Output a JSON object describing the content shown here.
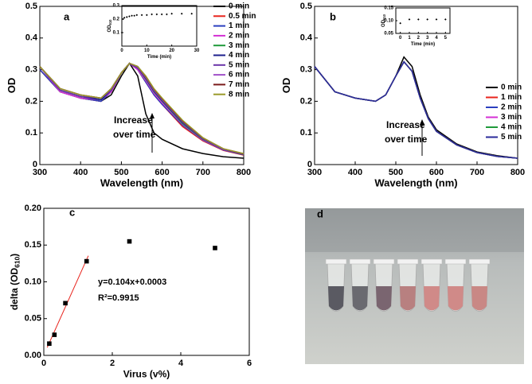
{
  "chart_data": [
    {
      "type": "line",
      "panel_label": "a",
      "x_label": "Wavelength (nm)",
      "y_label": "OD",
      "x": [
        300,
        350,
        400,
        450,
        475,
        500,
        520,
        540,
        560,
        580,
        600,
        650,
        700,
        750,
        800
      ],
      "xlim": [
        300,
        800
      ],
      "xticks": [
        300,
        400,
        500,
        600,
        700,
        800
      ],
      "ylim": [
        0,
        0.5
      ],
      "yticks": [
        0,
        0.1,
        0.2,
        0.3,
        0.4,
        0.5
      ],
      "legend": "upper right",
      "annotations": [
        "Increase",
        "over time"
      ],
      "series": [
        {
          "name": "0 min",
          "color": "#000000",
          "values": [
            0.3,
            0.23,
            0.21,
            0.2,
            0.22,
            0.28,
            0.32,
            0.28,
            0.16,
            0.1,
            0.08,
            0.05,
            0.035,
            0.025,
            0.02
          ]
        },
        {
          "name": "0.5 min",
          "color": "#e8231c",
          "values": [
            0.3,
            0.23,
            0.21,
            0.2,
            0.23,
            0.29,
            0.32,
            0.3,
            0.26,
            0.22,
            0.19,
            0.12,
            0.075,
            0.045,
            0.03
          ]
        },
        {
          "name": "1 min",
          "color": "#2b3fbf",
          "values": [
            0.3,
            0.23,
            0.21,
            0.2,
            0.23,
            0.29,
            0.32,
            0.3,
            0.26,
            0.22,
            0.19,
            0.125,
            0.077,
            0.046,
            0.031
          ]
        },
        {
          "name": "2 min",
          "color": "#d42fd4",
          "values": [
            0.31,
            0.23,
            0.21,
            0.205,
            0.23,
            0.29,
            0.32,
            0.3,
            0.265,
            0.225,
            0.195,
            0.128,
            0.078,
            0.047,
            0.032
          ]
        },
        {
          "name": "3 min",
          "color": "#1f9a3a",
          "values": [
            0.31,
            0.235,
            0.215,
            0.205,
            0.235,
            0.29,
            0.32,
            0.305,
            0.27,
            0.23,
            0.2,
            0.13,
            0.08,
            0.048,
            0.032
          ]
        },
        {
          "name": "4 min",
          "color": "#1c1f8c",
          "values": [
            0.31,
            0.235,
            0.215,
            0.205,
            0.235,
            0.29,
            0.32,
            0.305,
            0.272,
            0.232,
            0.202,
            0.133,
            0.081,
            0.048,
            0.033
          ]
        },
        {
          "name": "5 min",
          "color": "#6a35a8",
          "values": [
            0.31,
            0.235,
            0.215,
            0.21,
            0.235,
            0.29,
            0.32,
            0.305,
            0.274,
            0.234,
            0.204,
            0.135,
            0.082,
            0.049,
            0.033
          ]
        },
        {
          "name": "6 min",
          "color": "#a050c8",
          "values": [
            0.31,
            0.24,
            0.22,
            0.21,
            0.24,
            0.29,
            0.32,
            0.31,
            0.276,
            0.236,
            0.206,
            0.137,
            0.083,
            0.049,
            0.034
          ]
        },
        {
          "name": "7 min",
          "color": "#7a1a1a",
          "values": [
            0.31,
            0.24,
            0.22,
            0.21,
            0.24,
            0.29,
            0.32,
            0.31,
            0.278,
            0.238,
            0.208,
            0.138,
            0.084,
            0.05,
            0.034
          ]
        },
        {
          "name": "8 min",
          "color": "#9a9a2a",
          "values": [
            0.31,
            0.24,
            0.22,
            0.21,
            0.24,
            0.29,
            0.32,
            0.31,
            0.28,
            0.24,
            0.21,
            0.14,
            0.085,
            0.05,
            0.035
          ]
        }
      ]
    },
    {
      "type": "scatter",
      "marker": "diamond",
      "x_label": "Time (min)",
      "y_label": "OD",
      "y_label_sub": "610",
      "x": [
        0,
        0.5,
        1,
        2,
        3,
        4,
        5,
        6,
        8,
        10,
        12,
        14,
        16,
        18,
        20,
        24,
        28
      ],
      "values": [
        0.1,
        0.2,
        0.21,
        0.215,
        0.22,
        0.225,
        0.225,
        0.23,
        0.23,
        0.23,
        0.235,
        0.235,
        0.235,
        0.235,
        0.24,
        0.24,
        0.24
      ],
      "xlim": [
        0,
        30
      ],
      "xticks": [
        0,
        10,
        20,
        30
      ],
      "ylim": [
        0,
        0.3
      ],
      "yticks": [
        0.1,
        0.2,
        0.3
      ]
    },
    {
      "type": "line",
      "panel_label": "b",
      "x_label": "Wavelength (nm)",
      "y_label": "OD",
      "x": [
        300,
        350,
        400,
        450,
        475,
        500,
        520,
        540,
        560,
        580,
        600,
        650,
        700,
        750,
        800
      ],
      "xlim": [
        300,
        800
      ],
      "xticks": [
        300,
        400,
        500,
        600,
        700,
        800
      ],
      "ylim": [
        0,
        0.5
      ],
      "yticks": [
        0,
        0.1,
        0.2,
        0.3,
        0.4,
        0.5
      ],
      "legend": "lower right",
      "annotations": [
        "Increase",
        "over time"
      ],
      "series": [
        {
          "name": "0 min",
          "color": "#000000",
          "values": [
            0.31,
            0.23,
            0.21,
            0.2,
            0.22,
            0.28,
            0.34,
            0.31,
            0.22,
            0.15,
            0.11,
            0.065,
            0.04,
            0.028,
            0.02
          ]
        },
        {
          "name": "1 min",
          "color": "#e8231c",
          "values": [
            0.31,
            0.23,
            0.21,
            0.2,
            0.22,
            0.28,
            0.325,
            0.295,
            0.21,
            0.145,
            0.105,
            0.062,
            0.038,
            0.026,
            0.02
          ]
        },
        {
          "name": "2 min",
          "color": "#2b3fbf",
          "values": [
            0.31,
            0.23,
            0.21,
            0.2,
            0.22,
            0.28,
            0.325,
            0.295,
            0.21,
            0.145,
            0.105,
            0.062,
            0.038,
            0.026,
            0.02
          ]
        },
        {
          "name": "3 min",
          "color": "#d42fd4",
          "values": [
            0.31,
            0.23,
            0.21,
            0.2,
            0.22,
            0.28,
            0.325,
            0.295,
            0.21,
            0.145,
            0.105,
            0.062,
            0.038,
            0.026,
            0.02
          ]
        },
        {
          "name": "4 min",
          "color": "#1f9a3a",
          "values": [
            0.31,
            0.23,
            0.21,
            0.2,
            0.22,
            0.28,
            0.325,
            0.295,
            0.21,
            0.145,
            0.105,
            0.062,
            0.038,
            0.026,
            0.02
          ]
        },
        {
          "name": "5 min",
          "color": "#2a2a9a",
          "values": [
            0.31,
            0.23,
            0.21,
            0.2,
            0.22,
            0.28,
            0.325,
            0.295,
            0.21,
            0.145,
            0.105,
            0.062,
            0.038,
            0.026,
            0.02
          ]
        }
      ]
    },
    {
      "type": "scatter",
      "marker": "diamond",
      "x_label": "Time (min)",
      "y_label": "OD",
      "y_label_sub": "610",
      "x": [
        0,
        1,
        2,
        3,
        4,
        5
      ],
      "values": [
        0.09,
        0.105,
        0.105,
        0.105,
        0.105,
        0.105
      ],
      "xlim": [
        -0.5,
        5.5
      ],
      "xticks": [
        0,
        1,
        2,
        3,
        4,
        5
      ],
      "ylim": [
        0.05,
        0.15
      ],
      "yticks": [
        {
          "value": 0.05,
          "label": "0.05"
        },
        {
          "value": 0.1,
          "label": "0.10"
        },
        {
          "value": 0.15,
          "label": "0.15"
        }
      ]
    },
    {
      "type": "scatter",
      "marker": "square",
      "panel_label": "c",
      "x_label": "Virus (v%)",
      "y_label": "delta (OD",
      "y_label_sub": "610",
      "y_label_end": ")",
      "x": [
        0.16,
        0.31,
        0.63,
        1.25,
        2.5,
        5
      ],
      "values": [
        0.016,
        0.028,
        0.071,
        0.128,
        0.155,
        0.146
      ],
      "xlim": [
        0,
        6
      ],
      "xticks": [
        0,
        2,
        4,
        6
      ],
      "ylim": [
        0,
        0.2
      ],
      "yticks": [
        {
          "value": 0,
          "label": "0.00"
        },
        {
          "value": 0.05,
          "label": "0.05"
        },
        {
          "value": 0.1,
          "label": "0.10"
        },
        {
          "value": 0.15,
          "label": "0.15"
        },
        {
          "value": 0.2,
          "label": "0.20"
        }
      ],
      "fit_line": {
        "color": "#e8231c",
        "x": [
          0.1,
          1.3
        ],
        "y": [
          0.0107,
          0.1355
        ]
      },
      "annotations": [
        "y=0.104x+0.0003",
        "R²=0.9915"
      ]
    }
  ],
  "photo": {
    "panel_label": "d"
  }
}
